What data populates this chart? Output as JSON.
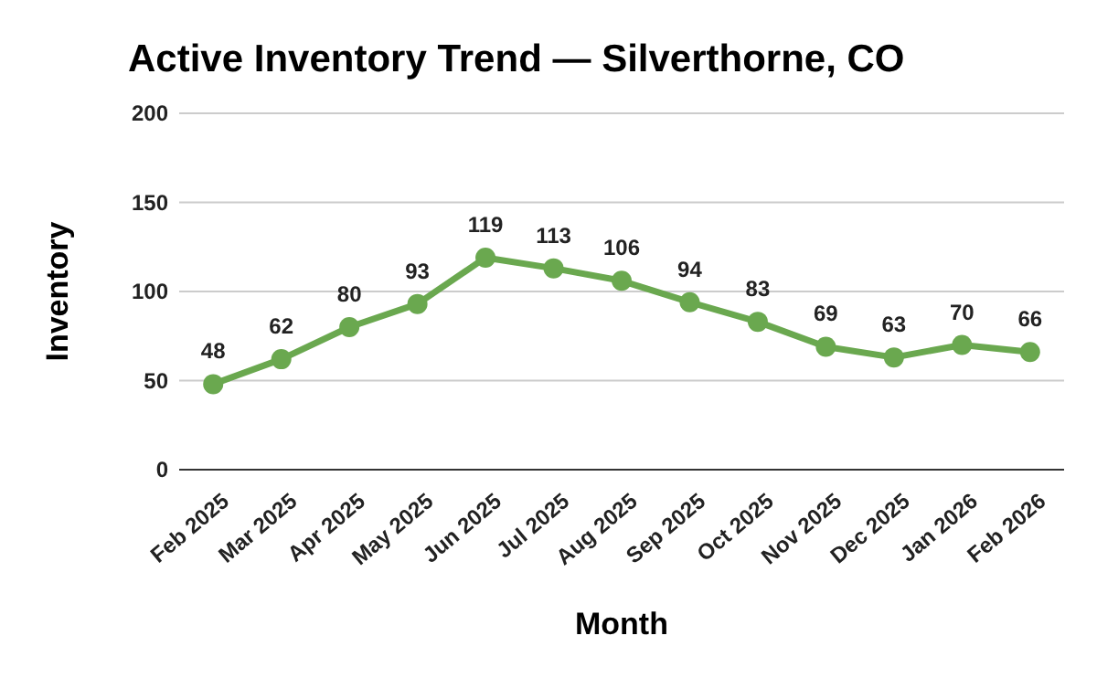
{
  "chart_data": {
    "type": "line",
    "title": "Active Inventory Trend — Silverthorne, CO",
    "xlabel": "Month",
    "ylabel": "Inventory",
    "categories": [
      "Feb 2025",
      "Mar 2025",
      "Apr 2025",
      "May 2025",
      "Jun 2025",
      "Jul 2025",
      "Aug 2025",
      "Sep 2025",
      "Oct 2025",
      "Nov 2025",
      "Dec 2025",
      "Jan 2026",
      "Feb 2026"
    ],
    "series": [
      {
        "color": "#6aa84f",
        "values": [
          48,
          62,
          80,
          93,
          119,
          113,
          106,
          94,
          83,
          69,
          63,
          70,
          66
        ]
      }
    ],
    "ylim": [
      0,
      200
    ],
    "yticks": [
      0,
      50,
      100,
      150,
      200
    ],
    "grid": "y",
    "marker": "circle",
    "line_style": "solid",
    "data_labels": true
  }
}
